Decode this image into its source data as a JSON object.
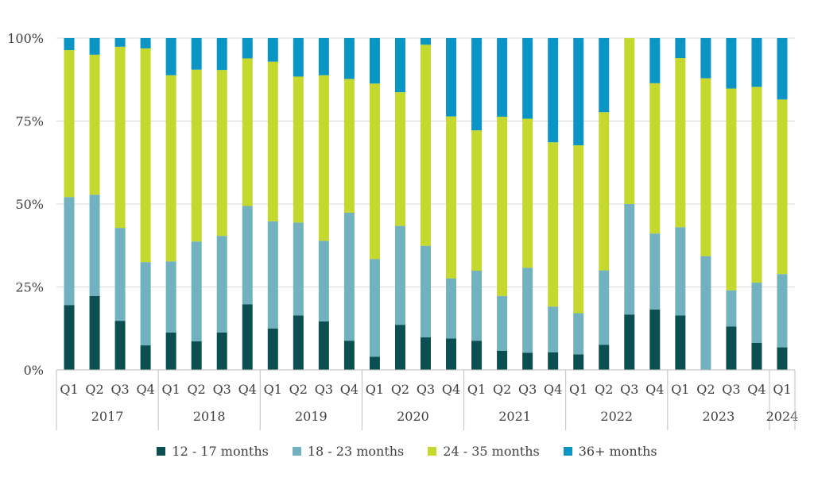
{
  "chart_data": {
    "type": "bar",
    "stacked": true,
    "normalized_percent": true,
    "title": "",
    "xlabel": "",
    "ylabel": "",
    "ylim": [
      0,
      100
    ],
    "y_ticks": [
      "0%",
      "25%",
      "50%",
      "75%",
      "100%"
    ],
    "grid": "horizontal",
    "legend_position": "bottom",
    "categories": [
      "Q1",
      "Q2",
      "Q3",
      "Q4",
      "Q1",
      "Q2",
      "Q3",
      "Q4",
      "Q1",
      "Q2",
      "Q3",
      "Q4",
      "Q1",
      "Q2",
      "Q3",
      "Q4",
      "Q1",
      "Q2",
      "Q3",
      "Q4",
      "Q1",
      "Q2",
      "Q3",
      "Q4",
      "Q1",
      "Q2",
      "Q3",
      "Q4",
      "Q1"
    ],
    "year_groups": [
      {
        "label": "2017",
        "count": 4
      },
      {
        "label": "2018",
        "count": 4
      },
      {
        "label": "2019",
        "count": 4
      },
      {
        "label": "2020",
        "count": 4
      },
      {
        "label": "2021",
        "count": 4
      },
      {
        "label": "2022",
        "count": 4
      },
      {
        "label": "2023",
        "count": 4
      },
      {
        "label": "2024",
        "count": 1
      }
    ],
    "series": [
      {
        "name": "12 - 17 months",
        "color": "#0b4f52",
        "values": [
          19.5,
          22.3,
          14.8,
          7.4,
          11.3,
          8.6,
          11.3,
          19.8,
          12.5,
          16.4,
          14.6,
          8.8,
          4.0,
          13.6,
          9.8,
          9.5,
          8.8,
          5.8,
          5.2,
          5.3,
          4.7,
          7.6,
          16.7,
          18.2,
          16.4,
          0.0,
          13.1,
          8.2,
          6.8
        ]
      },
      {
        "name": "18 - 23 months",
        "color": "#72b1bf",
        "values": [
          32.6,
          30.5,
          28.0,
          25.1,
          21.4,
          30.1,
          29.1,
          29.6,
          32.3,
          28.0,
          24.3,
          38.6,
          29.4,
          29.8,
          27.6,
          18.1,
          21.1,
          16.5,
          25.6,
          13.8,
          12.4,
          22.4,
          33.3,
          22.9,
          26.6,
          34.3,
          10.9,
          18.1,
          22.1
        ]
      },
      {
        "name": "24 - 35 months",
        "color": "#c4d82e",
        "values": [
          44.3,
          42.2,
          54.6,
          64.4,
          56.1,
          51.8,
          50.0,
          44.5,
          48.1,
          44.0,
          49.9,
          40.3,
          52.9,
          40.3,
          60.6,
          48.8,
          42.3,
          54.0,
          44.9,
          49.5,
          50.6,
          47.7,
          50.0,
          45.3,
          51.0,
          53.6,
          60.8,
          59.0,
          52.6
        ]
      },
      {
        "name": "36+ months",
        "color": "#0a95c4",
        "values": [
          3.6,
          5.0,
          2.6,
          3.1,
          11.2,
          9.5,
          9.6,
          6.1,
          7.1,
          11.6,
          11.2,
          12.3,
          13.7,
          16.3,
          2.0,
          23.6,
          27.8,
          23.7,
          24.3,
          31.4,
          32.3,
          22.3,
          0.0,
          13.6,
          6.0,
          12.1,
          15.2,
          14.7,
          18.5
        ]
      }
    ]
  }
}
